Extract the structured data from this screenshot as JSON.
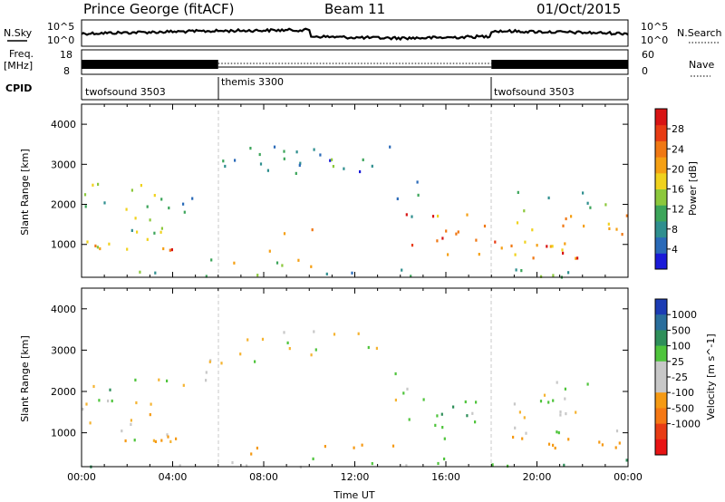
{
  "header": {
    "station": "Prince George (fitACF)",
    "beam": "Beam 11",
    "date": "01/Oct/2015"
  },
  "strips": {
    "nsky_label": "N.Sky",
    "nsearch_label": "N.Search",
    "nsky_ticks": [
      "10^5",
      "10^0"
    ],
    "nsearch_ticks": [
      "10^5",
      "10^0"
    ],
    "freq_label_1": "Freq.",
    "freq_label_2": "[MHz]",
    "freq_ticks": [
      "18",
      "8"
    ],
    "nave_label": "Nave",
    "nave_ticks": [
      "60",
      "0"
    ],
    "cpid_label": "CPID",
    "cpid_segments": [
      {
        "name": "twofsound 3503",
        "start_h": 0,
        "end_h": 6
      },
      {
        "name": "themis 3300",
        "start_h": 6,
        "end_h": 18
      },
      {
        "name": "twofsound 3503",
        "start_h": 18,
        "end_h": 24
      }
    ]
  },
  "chart_data": [
    {
      "type": "heatmap",
      "quantity": "Power",
      "ylabel": "Slant Range [km]",
      "xlim": [
        0,
        24
      ],
      "ylim": [
        180,
        4500
      ],
      "yticks": [
        1000,
        2000,
        3000,
        4000
      ],
      "colorbar": {
        "label": "Power [dB]",
        "range": [
          0,
          32
        ],
        "ticks": [
          "4",
          "8",
          "12",
          "16",
          "20",
          "24",
          "28"
        ],
        "colors": [
          "#1b1bd8",
          "#2a6ab8",
          "#2f8f8f",
          "#3ca55a",
          "#8cc83c",
          "#f0d21e",
          "#f5a014",
          "#f07814",
          "#e83c14",
          "#d81414"
        ]
      },
      "regions": [
        {
          "x0": 0.0,
          "x1": 4.4,
          "y0": 820,
          "y1": 2550,
          "v": 14
        },
        {
          "x0": 0.0,
          "x1": 4.2,
          "y0": 850,
          "y1": 1600,
          "v": 22
        },
        {
          "x0": 3.5,
          "x1": 4.4,
          "y0": 800,
          "y1": 1250,
          "v": 28
        },
        {
          "x0": 4.4,
          "x1": 5.5,
          "y0": 1800,
          "y1": 2700,
          "v": 6
        },
        {
          "x0": 5.5,
          "x1": 13.8,
          "y0": 2700,
          "y1": 3500,
          "v": 7
        },
        {
          "x0": 6.5,
          "x1": 12.5,
          "y0": 2850,
          "y1": 3300,
          "v": 12
        },
        {
          "x0": 13.5,
          "x1": 14.8,
          "y0": 1600,
          "y1": 2900,
          "v": 8
        },
        {
          "x0": 7.0,
          "x1": 8.5,
          "y0": 800,
          "y1": 950,
          "v": 18
        },
        {
          "x0": 8.0,
          "x1": 9.5,
          "y0": 1300,
          "y1": 1450,
          "v": 16
        },
        {
          "x0": 10.0,
          "x1": 10.6,
          "y0": 1400,
          "y1": 1750,
          "v": 26
        },
        {
          "x0": 5.5,
          "x1": 14.0,
          "y0": 480,
          "y1": 760,
          "v": 17
        },
        {
          "x0": 0.0,
          "x1": 24.0,
          "y0": 200,
          "y1": 420,
          "v": 10
        },
        {
          "x0": 14.2,
          "x1": 16.0,
          "y0": 800,
          "y1": 1900,
          "v": 28
        },
        {
          "x0": 15.5,
          "x1": 24.0,
          "y0": 400,
          "y1": 1800,
          "v": 21
        },
        {
          "x0": 18.5,
          "x1": 22.0,
          "y0": 600,
          "y1": 1000,
          "v": 28
        },
        {
          "x0": 19.0,
          "x1": 24.0,
          "y0": 1800,
          "y1": 2350,
          "v": 10
        }
      ]
    },
    {
      "type": "heatmap",
      "quantity": "Velocity",
      "ylabel": "Slant Range [km]",
      "xlabel": "Time UT",
      "xlim": [
        0,
        24
      ],
      "ylim": [
        180,
        4500
      ],
      "yticks": [
        1000,
        2000,
        3000,
        4000
      ],
      "xticks": [
        "00:00",
        "04:00",
        "08:00",
        "12:00",
        "16:00",
        "20:00",
        "00:00"
      ],
      "colorbar": {
        "label": "Velocity [m s^-1]",
        "ticks": [
          "1000",
          "500",
          "100",
          "25",
          "-25",
          "-100",
          "-500",
          "-1000"
        ],
        "colors": [
          "#1c3cb4",
          "#2a6e9c",
          "#2f8f5a",
          "#4fc43c",
          "#c8c8c8",
          "#c8c8c8",
          "#f59a14",
          "#f57814",
          "#e83c14",
          "#e81414"
        ]
      },
      "regions": [
        {
          "x0": 0.0,
          "x1": 4.4,
          "y0": 800,
          "y1": 2500,
          "v": 0
        },
        {
          "x0": 1.5,
          "x1": 4.4,
          "y0": 800,
          "y1": 1600,
          "v": -200
        },
        {
          "x0": 0.2,
          "x1": 1.4,
          "y0": 2000,
          "y1": 2400,
          "v": 200
        },
        {
          "x0": 4.4,
          "x1": 5.8,
          "y0": 1700,
          "y1": 2600,
          "v": 0
        },
        {
          "x0": 5.5,
          "x1": 13.8,
          "y0": 2700,
          "y1": 3500,
          "v": 0
        },
        {
          "x0": 13.5,
          "x1": 14.8,
          "y0": 1600,
          "y1": 2900,
          "v": 0
        },
        {
          "x0": 5.8,
          "x1": 14.0,
          "y0": 480,
          "y1": 760,
          "v": -150
        },
        {
          "x0": 0.0,
          "x1": 24.0,
          "y0": 200,
          "y1": 420,
          "v": 60
        },
        {
          "x0": 14.2,
          "x1": 17.0,
          "y0": 800,
          "y1": 1900,
          "v": 80
        },
        {
          "x0": 15.5,
          "x1": 24.0,
          "y0": 1000,
          "y1": 1800,
          "v": 0
        },
        {
          "x0": 16.5,
          "x1": 24.0,
          "y0": 500,
          "y1": 1000,
          "v": -200
        },
        {
          "x0": 19.0,
          "x1": 24.0,
          "y0": 1800,
          "y1": 2300,
          "v": 0
        }
      ]
    }
  ]
}
